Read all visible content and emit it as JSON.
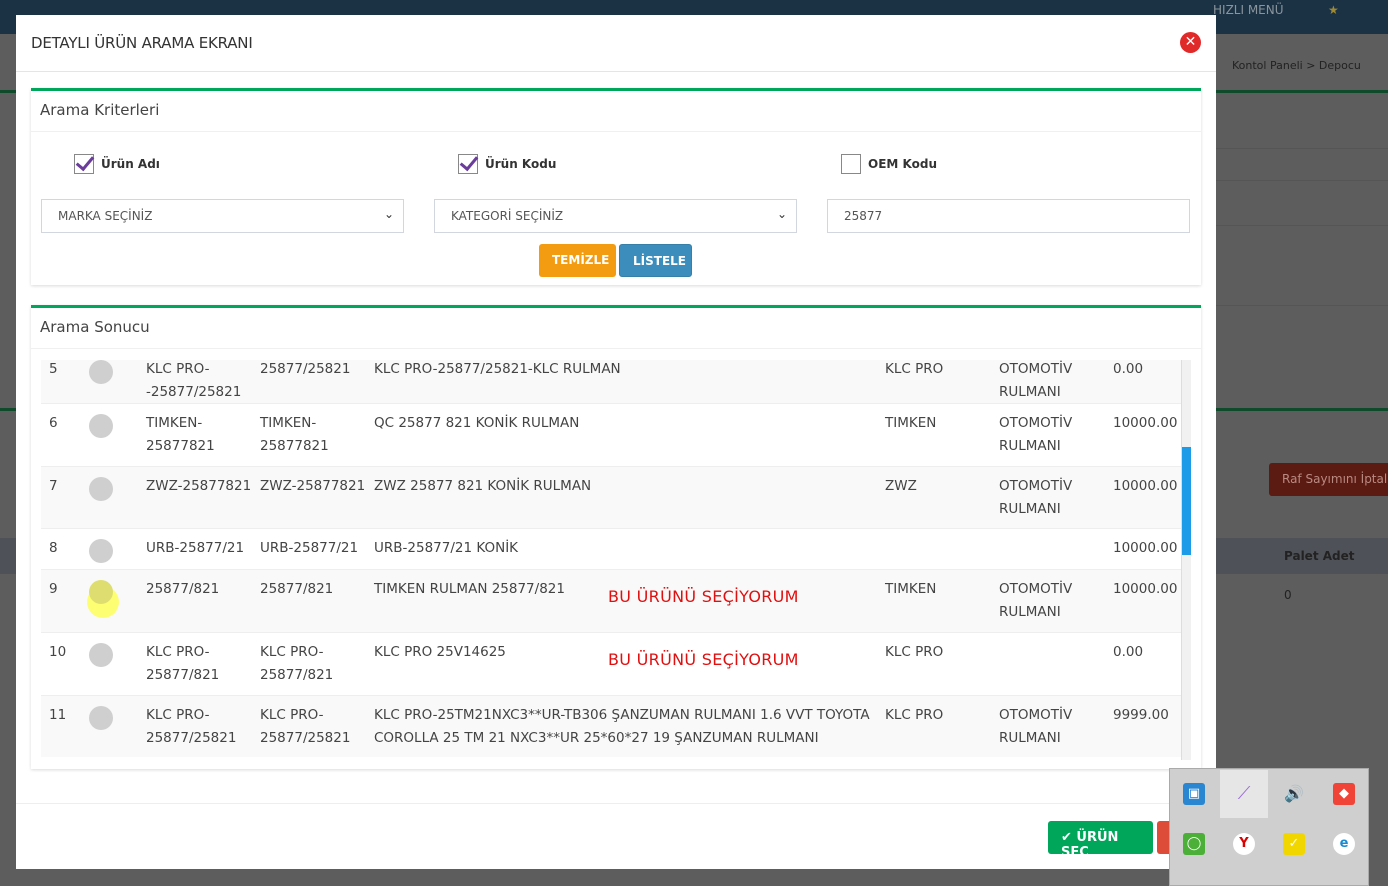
{
  "background": {
    "top_menu": "HIZLI MENÜ",
    "breadcrumb": [
      "Kontol Paneli",
      "Depocu"
    ],
    "raf_button": "Raf Sayımını İptal",
    "palet_header": "Palet Adet",
    "palet_value": "0"
  },
  "modal": {
    "title": "DETAYLI ÜRÜN ARAMA EKRANI",
    "criteria": {
      "title": "Arama Kriterleri",
      "checkboxes": [
        {
          "label": "Ürün Adı",
          "checked": true
        },
        {
          "label": "Ürün Kodu",
          "checked": true
        },
        {
          "label": "OEM Kodu",
          "checked": false
        }
      ],
      "brand_select": "MARKA SEÇİNİZ",
      "category_select": "KATEGORİ SEÇİNİZ",
      "search_value": "25877",
      "clear_button": "TEMİZLE",
      "list_button": "LİSTELE"
    },
    "results": {
      "title": "Arama Sonucu",
      "rows": [
        {
          "no": "5",
          "code": "KLC PRO-\n-25877/25821",
          "code2": "25877/25821",
          "name": "KLC PRO-25877/25821-KLC RULMAN",
          "brand": "KLC PRO",
          "category": "OTOMOTİV\nRULMANI",
          "price": "0.00"
        },
        {
          "no": "6",
          "code": "TIMKEN-\n25877821",
          "code2": "TIMKEN-\n25877821",
          "name": "QC 25877 821 KONİK RULMAN",
          "brand": "TIMKEN",
          "category": "OTOMOTİV\nRULMANI",
          "price": "10000.00"
        },
        {
          "no": "7",
          "code": "ZWZ-25877821",
          "code2": "ZWZ-25877821",
          "name": "ZWZ 25877 821 KONİK RULMAN",
          "brand": "ZWZ",
          "category": "OTOMOTİV\nRULMANI",
          "price": "10000.00"
        },
        {
          "no": "8",
          "code": "URB-25877/21",
          "code2": "URB-25877/21",
          "name": "URB-25877/21 KONİK",
          "brand": "",
          "category": "",
          "price": "10000.00"
        },
        {
          "no": "9",
          "code": "25877/821",
          "code2": "25877/821",
          "name": "TIMKEN RULMAN 25877/821",
          "brand": "TIMKEN",
          "category": "OTOMOTİV\nRULMANI",
          "price": "10000.00"
        },
        {
          "no": "10",
          "code": "KLC PRO-\n25877/821",
          "code2": "KLC PRO-\n25877/821",
          "name": "KLC PRO 25V14625",
          "brand": "KLC PRO",
          "category": "",
          "price": "0.00"
        },
        {
          "no": "11",
          "code": "KLC PRO-\n25877/25821",
          "code2": "KLC PRO-\n25877/25821",
          "name": "KLC PRO-25TM21NXC3**UR-TB306 ŞANZUMAN RULMANI 1.6 VVT TOYOTA\nCOROLLA 25 TM 21 NXC3**UR 25*60*27 19 ŞANZUMAN RULMANI",
          "brand": "KLC PRO",
          "category": "OTOMOTİV\nRULMANI",
          "price": "9999.00"
        }
      ],
      "annotation_1": "BU ÜRÜNÜ SEÇİYORUM",
      "annotation_2": "BU ÜRÜNÜ SEÇİYORUM"
    },
    "select_button": "ÜRÜN SEÇ"
  },
  "colors": {
    "green": "#00a65a",
    "orange": "#f39c12",
    "blue": "#3c8dbc",
    "red": "#dd4b39"
  }
}
